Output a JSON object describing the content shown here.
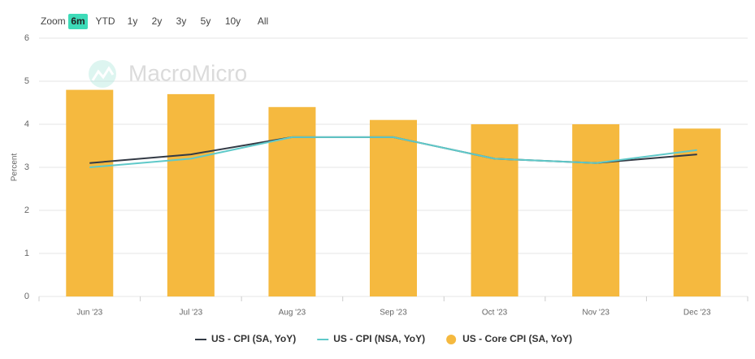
{
  "toolbar": {
    "label": "Zoom",
    "buttons": [
      "6m",
      "YTD",
      "1y",
      "2y",
      "3y",
      "5y",
      "10y",
      "All"
    ],
    "selected": 0
  },
  "watermark": "MacroMicro",
  "chart_data": {
    "type": "bar",
    "y_label": "Percent",
    "categories": [
      "Jun '23",
      "Jul '23",
      "Aug '23",
      "Sep '23",
      "Oct '23",
      "Nov '23",
      "Dec '23"
    ],
    "series": [
      {
        "name": "US - CPI (SA, YoY)",
        "type": "line",
        "color": "#333a45",
        "values": [
          3.1,
          3.3,
          3.7,
          3.7,
          3.2,
          3.1,
          3.3
        ]
      },
      {
        "name": "US - CPI (NSA, YoY)",
        "type": "line",
        "color": "#5fc9c9",
        "values": [
          3.0,
          3.2,
          3.7,
          3.7,
          3.2,
          3.1,
          3.4
        ]
      },
      {
        "name": "US - Core CPI (SA, YoY)",
        "type": "bar",
        "color": "#f5b93f",
        "values": [
          4.8,
          4.7,
          4.4,
          4.1,
          4.0,
          4.0,
          3.9
        ]
      }
    ],
    "ylim": [
      0,
      6
    ],
    "yticks": [
      0,
      1,
      2,
      3,
      4,
      5,
      6
    ],
    "grid": true,
    "legend": "bottom"
  }
}
